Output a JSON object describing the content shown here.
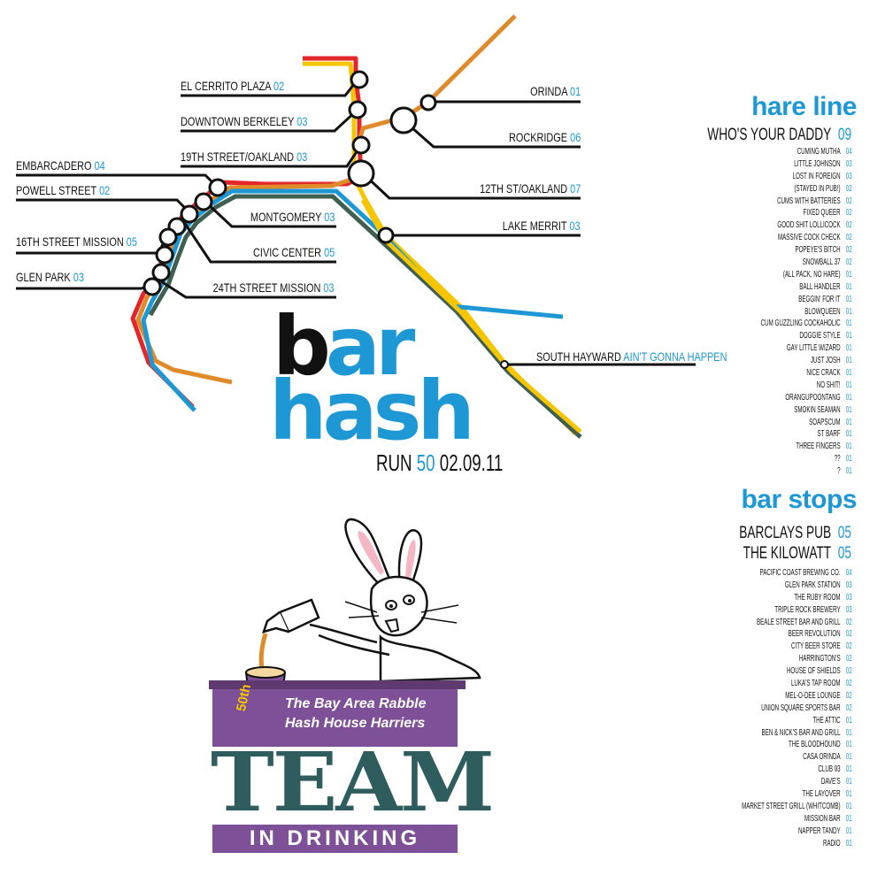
{
  "map": {
    "stations": [
      {
        "name": "EL CERRITO PLAZA",
        "num": "02"
      },
      {
        "name": "DOWNTOWN BERKELEY",
        "num": "03"
      },
      {
        "name": "19TH STREET/OAKLAND",
        "num": "03"
      },
      {
        "name": "EMBARCADERO",
        "num": "04"
      },
      {
        "name": "POWELL STREET",
        "num": "02"
      },
      {
        "name": "MONTGOMERY",
        "num": "03"
      },
      {
        "name": "16TH STREET MISSION",
        "num": "05"
      },
      {
        "name": "CIVIC CENTER",
        "num": "05"
      },
      {
        "name": "GLEN PARK",
        "num": "03"
      },
      {
        "name": "24TH STREET MISSION",
        "num": "03"
      },
      {
        "name": "ORINDA",
        "num": "01"
      },
      {
        "name": "ROCKRIDGE",
        "num": "06"
      },
      {
        "name": "12TH ST/OAKLAND",
        "num": "07"
      },
      {
        "name": "LAKE MERRIT",
        "num": "03"
      },
      {
        "name": "SOUTH HAYWARD",
        "num": "AIN'T GONNA HAPPEN"
      }
    ],
    "line_colors": {
      "red": "#e2262a",
      "yellow": "#f5c600",
      "orange": "#e08b2b",
      "blue": "#1d98d4",
      "green": "#3e5f52"
    }
  },
  "logo": {
    "b": "b",
    "ar": "ar",
    "hash": "hash",
    "run_prefix": "RUN",
    "run_number": "50",
    "run_date": "02.09.11"
  },
  "hare_line": {
    "heading": "hare line",
    "top": {
      "name": "WHO'S YOUR DADDY",
      "num": "09"
    },
    "rows": [
      {
        "name": "CUMING MUTHA",
        "num": "04"
      },
      {
        "name": "LITTLE JOHNSON",
        "num": "03"
      },
      {
        "name": "LOST IN FOREIGN",
        "num": "03"
      },
      {
        "name": "(STAYED IN PUB!)",
        "num": "02"
      },
      {
        "name": "CUMS WITH BATTERIES",
        "num": "02"
      },
      {
        "name": "FIXED QUEER",
        "num": "02"
      },
      {
        "name": "GOOD SHIT LOLLICOCK",
        "num": "02"
      },
      {
        "name": "MASSIVE COCK CHECK",
        "num": "02"
      },
      {
        "name": "POPEYE'S BITCH",
        "num": "02"
      },
      {
        "name": "SNOWBALL 37",
        "num": "02"
      },
      {
        "name": "(ALL PACK, NO HARE)",
        "num": "01"
      },
      {
        "name": "BALL HANDLER",
        "num": "01"
      },
      {
        "name": "BEGGIN' FOR IT",
        "num": "01"
      },
      {
        "name": "BLOWQUEEN",
        "num": "01"
      },
      {
        "name": "CUM GUZZLING COCKAHOLIC",
        "num": "01"
      },
      {
        "name": "DOGGIE STYLE",
        "num": "01"
      },
      {
        "name": "GAY LITTLE WIZARD",
        "num": "01"
      },
      {
        "name": "JUST JOSH",
        "num": "01"
      },
      {
        "name": "NICE CRACK",
        "num": "01"
      },
      {
        "name": "NO SHIT!",
        "num": "01"
      },
      {
        "name": "ORANGUPOONTANG",
        "num": "01"
      },
      {
        "name": "SMOKIN SEAMAN",
        "num": "01"
      },
      {
        "name": "SOAPSCUM",
        "num": "01"
      },
      {
        "name": "ST BARF",
        "num": "01"
      },
      {
        "name": "THREE FINGERS",
        "num": "01"
      },
      {
        "name": "??",
        "num": "01"
      },
      {
        "name": "?",
        "num": "01"
      }
    ]
  },
  "bar_stops": {
    "heading": "bar stops",
    "top": [
      {
        "name": "BARCLAYS PUB",
        "num": "05"
      },
      {
        "name": "THE KILOWATT",
        "num": "05"
      }
    ],
    "rows": [
      {
        "name": "PACIFIC COAST BREWING CO.",
        "num": "04"
      },
      {
        "name": "GLEN PARK STATION",
        "num": "03"
      },
      {
        "name": "THE RUBY ROOM",
        "num": "03"
      },
      {
        "name": "TRIPLE ROCK BREWERY",
        "num": "03"
      },
      {
        "name": "BEALE STREET BAR AND GRILL",
        "num": "02"
      },
      {
        "name": "BEER REVOLUTION",
        "num": "02"
      },
      {
        "name": "CITY BEER STORE",
        "num": "02"
      },
      {
        "name": "HARRINGTON'S",
        "num": "02"
      },
      {
        "name": "HOUSE OF SHIELDS",
        "num": "02"
      },
      {
        "name": "LUKA'S TAP ROOM",
        "num": "02"
      },
      {
        "name": "MEL-O-DEE LOUNGE",
        "num": "02"
      },
      {
        "name": "UNION SQUARE SPORTS BAR",
        "num": "02"
      },
      {
        "name": "THE ATTIC",
        "num": "01"
      },
      {
        "name": "BEN & NICK'S BAR AND GRILL",
        "num": "01"
      },
      {
        "name": "THE BLOODHOUND",
        "num": "01"
      },
      {
        "name": "CASA ORINDA",
        "num": "01"
      },
      {
        "name": "CLUB 93",
        "num": "01"
      },
      {
        "name": "DAVE'S",
        "num": "01"
      },
      {
        "name": "THE LAYOVER",
        "num": "01"
      },
      {
        "name": "MARKET STREET GRILL (WHITCOMB)",
        "num": "01"
      },
      {
        "name": "MISSION BAR",
        "num": "01"
      },
      {
        "name": "NAPPER TANDY",
        "num": "01"
      },
      {
        "name": "RADIO",
        "num": "01"
      }
    ]
  },
  "team": {
    "cup_label": "50th",
    "line1": "The Bay Area Rabble",
    "line2": "Hash House Harriers",
    "word": "TEAM",
    "bottom": "IN DRINKING"
  }
}
